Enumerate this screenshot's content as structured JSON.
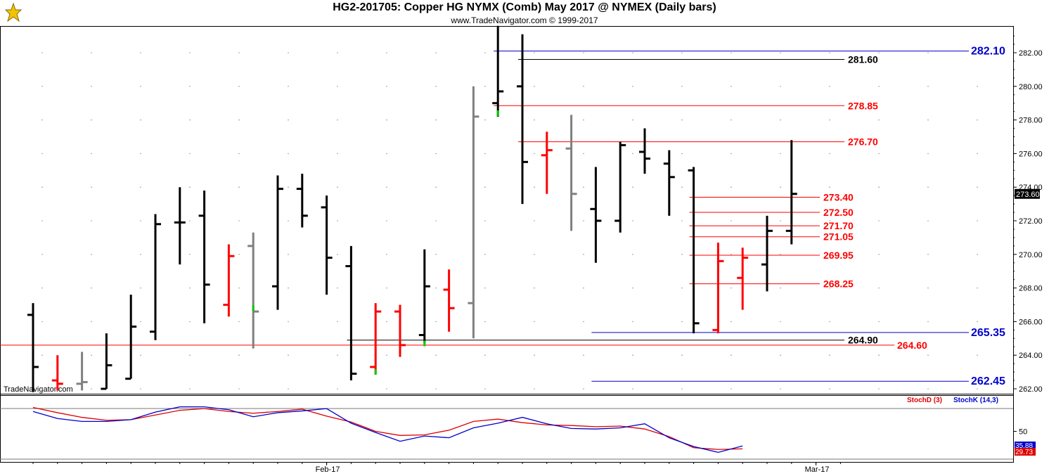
{
  "title": "HG2-201705:  Copper HG NYMX (Comb) May 2017 @ NYMEX  (Daily bars)",
  "subtitle": "www.TradeNavigator.com © 1999-2017",
  "watermark": "TradeNavigator.com",
  "colors": {
    "up_bar": "#000000",
    "down_bar": "#ff0000",
    "neutral_bar": "#808080",
    "signal_tick": "#00cc00",
    "blue_level": "#0000cc",
    "red_level": "#cc0000",
    "black_level": "#000000",
    "stoch_d": "#dd0000",
    "stoch_k": "#0000cc"
  },
  "chart_data": [
    {
      "type": "ohlc",
      "name": "price",
      "ylim": [
        261.5,
        284.0
      ],
      "y_ticks": [
        "262.00",
        "264.00",
        "266.00",
        "268.00",
        "270.00",
        "272.00",
        "274.00",
        "276.00",
        "278.00",
        "280.00",
        "282.00"
      ],
      "x_labels": [
        {
          "label": "Feb-17",
          "index": 12
        },
        {
          "label": "Mar-17",
          "index": 32
        }
      ],
      "last_price": "273.60",
      "bars": [
        {
          "i": 0,
          "o": 266.4,
          "h": 267.1,
          "l": 261.8,
          "c": 263.3,
          "color": "black"
        },
        {
          "i": 1,
          "o": 262.5,
          "h": 264.0,
          "l": 261.9,
          "c": 262.3,
          "color": "red"
        },
        {
          "i": 2,
          "o": 262.3,
          "h": 264.2,
          "l": 261.9,
          "c": 262.4,
          "color": "gray"
        },
        {
          "i": 3,
          "o": 262.0,
          "h": 265.3,
          "l": 262.0,
          "c": 263.4,
          "color": "black"
        },
        {
          "i": 4,
          "o": 262.6,
          "h": 267.6,
          "l": 262.6,
          "c": 265.7,
          "color": "black"
        },
        {
          "i": 5,
          "o": 265.4,
          "h": 272.4,
          "l": 264.9,
          "c": 271.8,
          "color": "black"
        },
        {
          "i": 6,
          "o": 271.9,
          "h": 274.0,
          "l": 269.4,
          "c": 271.9,
          "color": "black"
        },
        {
          "i": 7,
          "o": 272.3,
          "h": 273.8,
          "l": 265.9,
          "c": 268.2,
          "color": "black"
        },
        {
          "i": 8,
          "o": 267.0,
          "h": 270.6,
          "l": 266.3,
          "c": 269.9,
          "color": "red"
        },
        {
          "i": 9,
          "o": 270.5,
          "h": 271.3,
          "l": 264.4,
          "c": 266.6,
          "color": "gray"
        },
        {
          "i": 10,
          "o": 268.1,
          "h": 274.7,
          "l": 266.7,
          "c": 273.9,
          "color": "black"
        },
        {
          "i": 11,
          "o": 273.9,
          "h": 274.8,
          "l": 271.6,
          "c": 272.3,
          "color": "black"
        },
        {
          "i": 12,
          "o": 272.8,
          "h": 273.5,
          "l": 267.6,
          "c": 269.8,
          "color": "black"
        },
        {
          "i": 13,
          "o": 269.3,
          "h": 270.5,
          "l": 262.5,
          "c": 262.9,
          "color": "black"
        },
        {
          "i": 14,
          "o": 263.3,
          "h": 267.1,
          "l": 262.9,
          "c": 266.6,
          "color": "red"
        },
        {
          "i": 15,
          "o": 266.6,
          "h": 267.0,
          "l": 263.9,
          "c": 264.6,
          "color": "red"
        },
        {
          "i": 16,
          "o": 265.2,
          "h": 270.3,
          "l": 264.7,
          "c": 268.1,
          "color": "black"
        },
        {
          "i": 17,
          "o": 267.9,
          "h": 269.1,
          "l": 265.4,
          "c": 266.8,
          "color": "red"
        },
        {
          "i": 18,
          "o": 267.1,
          "h": 280.0,
          "l": 265.0,
          "c": 278.2,
          "color": "gray"
        },
        {
          "i": 19,
          "o": 279.0,
          "h": 283.6,
          "l": 278.2,
          "c": 279.7,
          "color": "black"
        },
        {
          "i": 20,
          "o": 280.0,
          "h": 283.1,
          "l": 273.0,
          "c": 275.5,
          "color": "black"
        },
        {
          "i": 21,
          "o": 275.9,
          "h": 277.3,
          "l": 273.6,
          "c": 276.2,
          "color": "red"
        },
        {
          "i": 22,
          "o": 276.3,
          "h": 278.3,
          "l": 271.4,
          "c": 273.6,
          "color": "gray"
        },
        {
          "i": 23,
          "o": 272.7,
          "h": 275.2,
          "l": 269.5,
          "c": 272.0,
          "color": "black"
        },
        {
          "i": 24,
          "o": 272.0,
          "h": 276.7,
          "l": 271.3,
          "c": 276.5,
          "color": "black"
        },
        {
          "i": 25,
          "o": 276.1,
          "h": 277.5,
          "l": 274.8,
          "c": 275.7,
          "color": "black"
        },
        {
          "i": 26,
          "o": 275.4,
          "h": 276.2,
          "l": 272.3,
          "c": 274.6,
          "color": "black"
        },
        {
          "i": 27,
          "o": 275.0,
          "h": 275.2,
          "l": 265.3,
          "c": 265.9,
          "color": "black"
        },
        {
          "i": 28,
          "o": 265.5,
          "h": 270.7,
          "l": 265.3,
          "c": 269.6,
          "color": "red"
        },
        {
          "i": 29,
          "o": 268.6,
          "h": 270.4,
          "l": 266.7,
          "c": 269.8,
          "color": "red"
        },
        {
          "i": 30,
          "o": 269.4,
          "h": 272.3,
          "l": 267.8,
          "c": 271.4,
          "color": "black"
        },
        {
          "i": 31,
          "o": 271.4,
          "h": 276.8,
          "l": 270.6,
          "c": 273.6,
          "color": "black"
        }
      ],
      "levels": [
        {
          "label": "282.10",
          "value": 282.1,
          "color": "blue",
          "from": 19
        },
        {
          "label": "281.60",
          "value": 281.6,
          "color": "black",
          "from": 20
        },
        {
          "label": "278.85",
          "value": 278.85,
          "color": "red",
          "from": 19
        },
        {
          "label": "276.70",
          "value": 276.7,
          "color": "red",
          "from": 20
        },
        {
          "label": "273.40",
          "value": 273.4,
          "color": "red",
          "from": 27
        },
        {
          "label": "272.50",
          "value": 272.5,
          "color": "red",
          "from": 27
        },
        {
          "label": "271.70",
          "value": 271.7,
          "color": "red",
          "from": 27
        },
        {
          "label": "271.05",
          "value": 271.05,
          "color": "red",
          "from": 27
        },
        {
          "label": "269.95",
          "value": 269.95,
          "color": "red",
          "from": 27
        },
        {
          "label": "268.25",
          "value": 268.25,
          "color": "red",
          "from": 27
        },
        {
          "label": "265.35",
          "value": 265.35,
          "color": "blue",
          "from": 23
        },
        {
          "label": "264.90",
          "value": 264.9,
          "color": "black",
          "from": 13
        },
        {
          "label": "264.60",
          "value": 264.6,
          "color": "red",
          "from": 0
        },
        {
          "label": "262.45",
          "value": 262.45,
          "color": "blue",
          "from": 23
        }
      ],
      "green_signals": [
        {
          "i": 9,
          "value": 266.8
        },
        {
          "i": 14,
          "value": 263.0
        },
        {
          "i": 16,
          "value": 264.7
        },
        {
          "i": 19,
          "value": 278.4
        }
      ]
    },
    {
      "type": "line",
      "name": "stochastic",
      "ylim": [
        0,
        100
      ],
      "y_ticks": [
        "50"
      ],
      "legend": [
        "StochD (3)",
        "StochK (14,3)"
      ],
      "last_values": [
        "35.88",
        "29.73"
      ],
      "series": [
        {
          "name": "StochD (3)",
          "color": "red",
          "values": [
            91,
            82,
            74,
            69,
            70,
            78,
            86,
            89,
            84,
            81,
            84,
            88,
            76,
            66,
            50,
            43,
            44,
            52,
            67,
            71,
            65,
            61,
            60,
            58,
            59,
            54,
            41,
            22,
            19,
            20
          ]
        },
        {
          "name": "StochK (14,3)",
          "color": "blue",
          "values": [
            84,
            72,
            67,
            67,
            70,
            83,
            92,
            92,
            87,
            75,
            82,
            85,
            89,
            64,
            48,
            33,
            42,
            39,
            56,
            64,
            74,
            63,
            55,
            54,
            56,
            63,
            39,
            24,
            14,
            25
          ]
        }
      ]
    }
  ]
}
